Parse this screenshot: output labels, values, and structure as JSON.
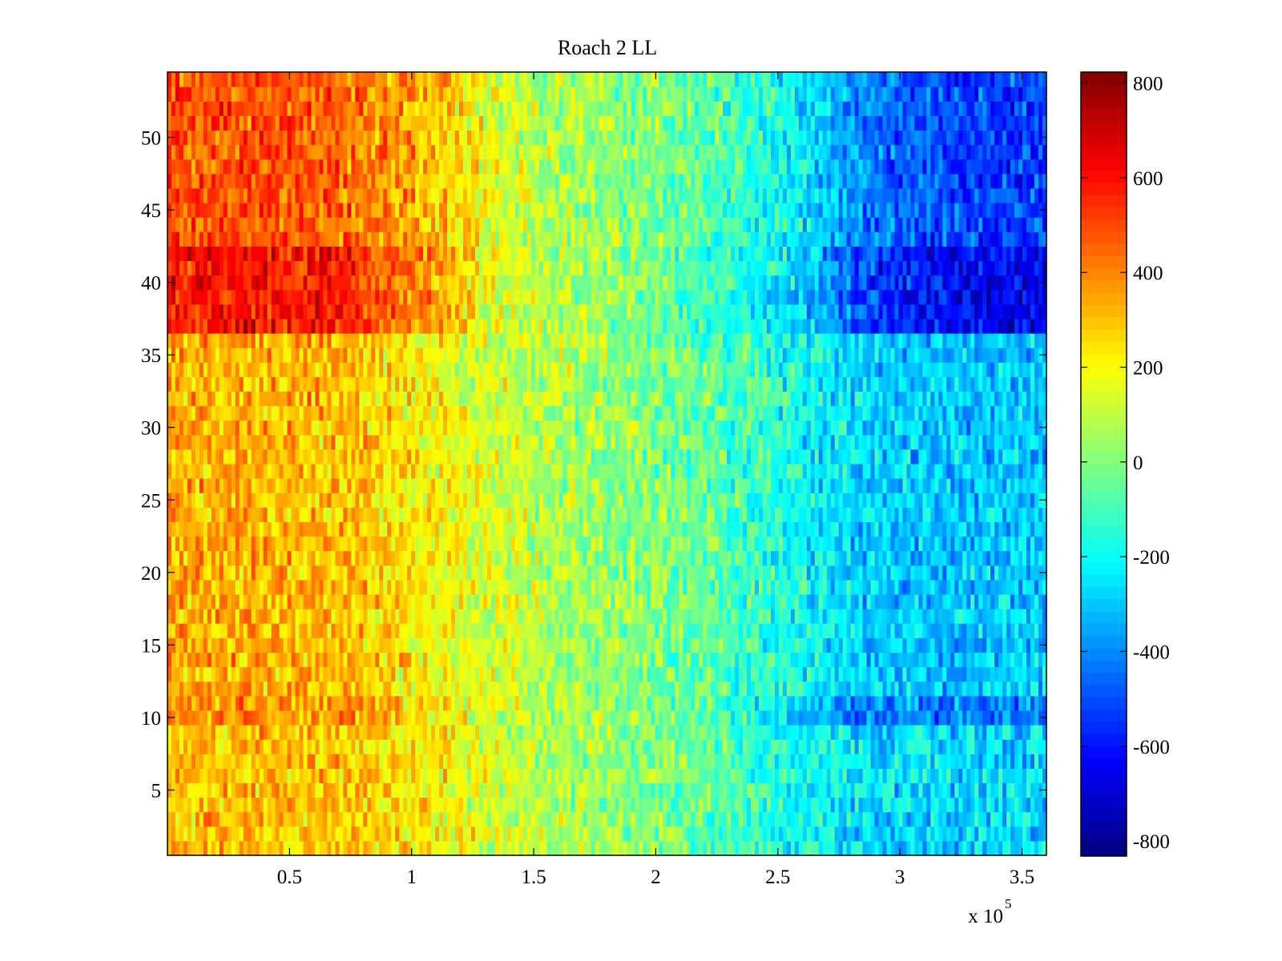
{
  "chart_data": {
    "type": "heatmap",
    "title": "Roach 2 LL",
    "xlabel": "",
    "ylabel": "",
    "x_multiplier_label": {
      "base": "x 10",
      "exponent": "5"
    },
    "xlim": [
      0,
      3.6
    ],
    "ylim": [
      0.5,
      54.5
    ],
    "xticks": [
      0.5,
      1,
      1.5,
      2,
      2.5,
      3,
      3.5
    ],
    "xtick_labels": [
      "0.5",
      "1",
      "1.5",
      "2",
      "2.5",
      "3",
      "3.5"
    ],
    "yticks": [
      5,
      10,
      15,
      20,
      25,
      30,
      35,
      40,
      45,
      50
    ],
    "ytick_labels": [
      "5",
      "10",
      "15",
      "20",
      "25",
      "30",
      "35",
      "40",
      "45",
      "50"
    ],
    "colormap": "jet",
    "clim": [
      -832,
      823
    ],
    "colorbar_ticks": [
      -800,
      -600,
      -400,
      -200,
      0,
      200,
      400,
      600,
      800
    ],
    "colorbar_tick_labels": [
      "-800",
      "-600",
      "-400",
      "-200",
      "0",
      "200",
      "400",
      "600",
      "800"
    ],
    "rows": 54,
    "column_bands_x": [
      0.15,
      0.45,
      0.75,
      1.05,
      1.35,
      1.65,
      1.95,
      2.25,
      2.55,
      2.85,
      3.15,
      3.45
    ],
    "row_groups": [
      {
        "rows": [
          1,
          9
        ],
        "band_means": [
          300,
          300,
          280,
          220,
          130,
          60,
          0,
          -60,
          -180,
          -250,
          -260,
          -270
        ]
      },
      {
        "rows": [
          10,
          11
        ],
        "band_means": [
          380,
          380,
          360,
          260,
          130,
          60,
          0,
          -80,
          -280,
          -400,
          -420,
          -400
        ]
      },
      {
        "rows": [
          12,
          36
        ],
        "band_means": [
          330,
          330,
          300,
          210,
          130,
          60,
          0,
          -60,
          -180,
          -280,
          -300,
          -300
        ]
      },
      {
        "rows": [
          37,
          42
        ],
        "band_means": [
          600,
          600,
          560,
          380,
          150,
          60,
          0,
          -120,
          -250,
          -520,
          -620,
          -650
        ]
      },
      {
        "rows": [
          43,
          54
        ],
        "band_means": [
          480,
          480,
          440,
          330,
          140,
          60,
          0,
          -80,
          -200,
          -420,
          -500,
          -520
        ]
      }
    ],
    "noise_amplitude": 160,
    "grid": false,
    "legend": "colorbar-right"
  }
}
